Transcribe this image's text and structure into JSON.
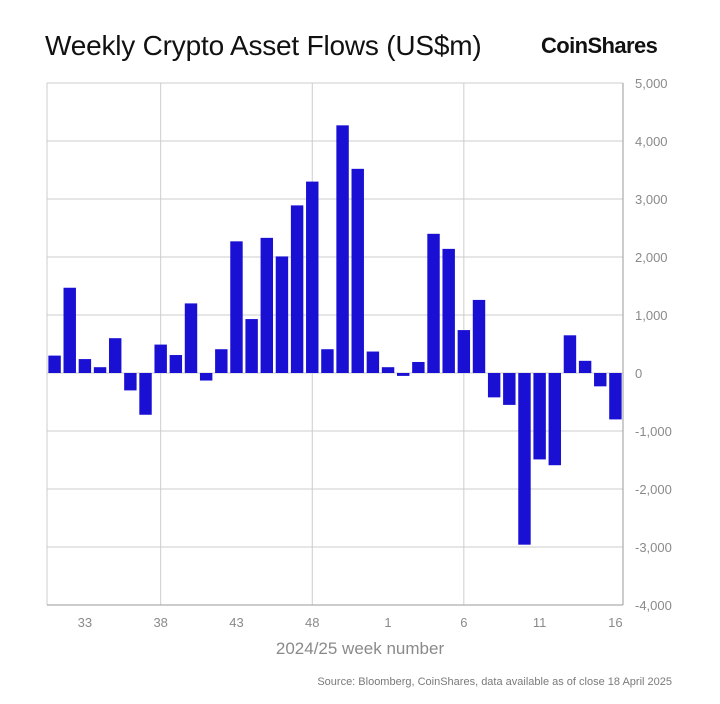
{
  "header": {
    "title": "Weekly Crypto Asset Flows (US$m)",
    "logo_text": "CoinShares"
  },
  "footer": {
    "source": "Source: Bloomberg, CoinShares, data available as of close 18 April 2025"
  },
  "colors": {
    "bar": "#1a10d4",
    "grid": "#cccccc",
    "axis": "#9a9a9a",
    "tick_text": "#8a8a8a"
  },
  "chart_data": {
    "type": "bar",
    "xlabel": "2024/25 week number",
    "ylabel": "",
    "ylim": [
      -4000,
      5000
    ],
    "y_ticks": [
      5000,
      4000,
      3000,
      2000,
      1000,
      0,
      -1000,
      -2000,
      -3000,
      -4000
    ],
    "y_tick_labels": [
      "5,000",
      "4,000",
      "3,000",
      "2,000",
      "1,000",
      "0",
      "-1,000",
      "-2,000",
      "-3,000",
      "-4,000"
    ],
    "y_axis_position": "right",
    "grid": true,
    "categories": [
      "31",
      "32",
      "33",
      "34",
      "35",
      "36",
      "37",
      "38",
      "39",
      "40",
      "41",
      "42",
      "43",
      "44",
      "45",
      "46",
      "47",
      "48",
      "49",
      "50",
      "51",
      "52",
      "1",
      "2",
      "3",
      "4",
      "5",
      "6",
      "7",
      "8",
      "9",
      "10",
      "11",
      "12",
      "13",
      "14",
      "15",
      "16"
    ],
    "x_tick_labels": [
      "33",
      "38",
      "43",
      "48",
      "1",
      "6",
      "11",
      "16"
    ],
    "vertical_grid_at": [
      "38",
      "48",
      "6"
    ],
    "values": [
      300,
      1470,
      240,
      100,
      600,
      -300,
      -720,
      490,
      310,
      1200,
      -130,
      410,
      2270,
      930,
      2330,
      2010,
      2890,
      3300,
      410,
      4270,
      3520,
      370,
      100,
      -50,
      190,
      2400,
      2140,
      740,
      1260,
      -420,
      -550,
      -2960,
      -1490,
      -1590,
      650,
      210,
      -230,
      -800
    ]
  }
}
